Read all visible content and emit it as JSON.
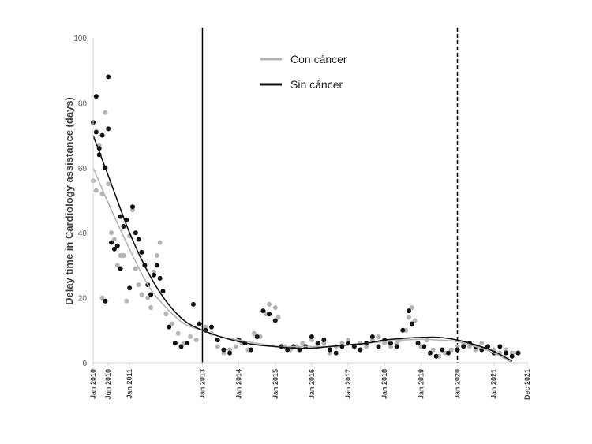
{
  "chart_data": {
    "type": "scatter",
    "ylabel": "Delay time in Cardiology assistance (days)",
    "ylim": [
      0,
      100
    ],
    "yticks": [
      "0",
      "20",
      "40",
      "60",
      "80",
      "100"
    ],
    "xlim": [
      "2010-01",
      "2021-12"
    ],
    "xticks": [
      {
        "date": "2010-01",
        "label": "Jan 2010"
      },
      {
        "date": "2010-06",
        "label": "Jun 2010"
      },
      {
        "date": "2011-01",
        "label": "Jan 2011"
      },
      {
        "date": "2013-01",
        "label": "Jan 2013"
      },
      {
        "date": "2014-01",
        "label": "Jan 2014"
      },
      {
        "date": "2015-01",
        "label": "Jan 2015"
      },
      {
        "date": "2016-01",
        "label": "Jan 2016"
      },
      {
        "date": "2017-01",
        "label": "Jan 2017"
      },
      {
        "date": "2018-01",
        "label": "Jan 2018"
      },
      {
        "date": "2019-01",
        "label": "Jan 2019"
      },
      {
        "date": "2020-01",
        "label": "Jan 2020"
      },
      {
        "date": "2021-01",
        "label": "Jan 2021"
      },
      {
        "date": "2021-12",
        "label": "Dec 2021"
      }
    ],
    "vlines": [
      {
        "date": "2013-01",
        "style": "solid"
      },
      {
        "date": "2020-01",
        "style": "dashed"
      }
    ],
    "legend_position": "top-center",
    "grid": false,
    "series": [
      {
        "name": "Con cáncer",
        "color": "#b4b4b4",
        "points": [
          [
            "2010-01",
            56
          ],
          [
            "2010-02",
            53
          ],
          [
            "2010-02",
            71
          ],
          [
            "2010-03",
            67
          ],
          [
            "2010-04",
            52
          ],
          [
            "2010-04",
            20
          ],
          [
            "2010-05",
            77
          ],
          [
            "2010-06",
            55
          ],
          [
            "2010-07",
            40
          ],
          [
            "2010-08",
            38
          ],
          [
            "2010-09",
            30
          ],
          [
            "2010-10",
            33
          ],
          [
            "2010-11",
            33
          ],
          [
            "2010-12",
            19
          ],
          [
            "2011-01",
            39
          ],
          [
            "2011-02",
            47
          ],
          [
            "2011-03",
            29
          ],
          [
            "2011-04",
            24
          ],
          [
            "2011-05",
            21
          ],
          [
            "2011-06",
            30
          ],
          [
            "2011-07",
            20
          ],
          [
            "2011-08",
            17
          ],
          [
            "2011-09",
            28
          ],
          [
            "2011-10",
            33
          ],
          [
            "2011-11",
            37
          ],
          [
            "2011-12",
            22
          ],
          [
            "2012-01",
            15
          ],
          [
            "2012-03",
            12
          ],
          [
            "2012-05",
            9
          ],
          [
            "2012-07",
            6
          ],
          [
            "2012-09",
            8
          ],
          [
            "2012-11",
            7
          ],
          [
            "2013-02",
            11
          ],
          [
            "2013-04",
            9
          ],
          [
            "2013-06",
            5
          ],
          [
            "2013-08",
            3
          ],
          [
            "2013-10",
            4
          ],
          [
            "2013-12",
            5
          ],
          [
            "2014-02",
            6
          ],
          [
            "2014-04",
            4
          ],
          [
            "2014-06",
            9
          ],
          [
            "2014-08",
            8
          ],
          [
            "2014-10",
            15
          ],
          [
            "2014-11",
            18
          ],
          [
            "2015-01",
            17
          ],
          [
            "2015-02",
            14
          ],
          [
            "2015-04",
            5
          ],
          [
            "2015-06",
            4
          ],
          [
            "2015-08",
            5
          ],
          [
            "2015-10",
            6
          ],
          [
            "2016-01",
            7
          ],
          [
            "2016-03",
            5
          ],
          [
            "2016-05",
            6
          ],
          [
            "2016-07",
            3
          ],
          [
            "2016-09",
            5
          ],
          [
            "2016-11",
            6
          ],
          [
            "2017-01",
            7
          ],
          [
            "2017-03",
            5
          ],
          [
            "2017-05",
            6
          ],
          [
            "2017-07",
            5
          ],
          [
            "2017-09",
            7
          ],
          [
            "2017-11",
            8
          ],
          [
            "2018-01",
            6
          ],
          [
            "2018-03",
            5
          ],
          [
            "2018-05",
            6
          ],
          [
            "2018-06",
            7
          ],
          [
            "2018-08",
            10
          ],
          [
            "2018-09",
            14
          ],
          [
            "2018-10",
            17
          ],
          [
            "2018-11",
            13
          ],
          [
            "2019-01",
            5
          ],
          [
            "2019-03",
            7
          ],
          [
            "2019-05",
            4
          ],
          [
            "2019-07",
            2
          ],
          [
            "2019-09",
            3
          ],
          [
            "2019-11",
            4
          ],
          [
            "2020-01",
            5
          ],
          [
            "2020-03",
            6
          ],
          [
            "2020-05",
            5
          ],
          [
            "2020-07",
            4
          ],
          [
            "2020-09",
            6
          ],
          [
            "2020-11",
            5
          ],
          [
            "2021-01",
            4
          ],
          [
            "2021-03",
            3
          ],
          [
            "2021-05",
            4
          ],
          [
            "2021-07",
            3
          ],
          [
            "2021-09",
            3
          ]
        ]
      },
      {
        "name": "Sin cáncer",
        "color": "#111111",
        "points": [
          [
            "2010-01",
            74
          ],
          [
            "2010-02",
            82
          ],
          [
            "2010-02",
            71
          ],
          [
            "2010-03",
            64
          ],
          [
            "2010-03",
            66
          ],
          [
            "2010-04",
            70
          ],
          [
            "2010-05",
            60
          ],
          [
            "2010-05",
            19
          ],
          [
            "2010-06",
            88
          ],
          [
            "2010-06",
            72
          ],
          [
            "2010-07",
            37
          ],
          [
            "2010-08",
            35
          ],
          [
            "2010-09",
            36
          ],
          [
            "2010-10",
            29
          ],
          [
            "2010-10",
            45
          ],
          [
            "2010-11",
            42
          ],
          [
            "2010-12",
            44
          ],
          [
            "2011-01",
            23
          ],
          [
            "2011-02",
            48
          ],
          [
            "2011-03",
            40
          ],
          [
            "2011-04",
            38
          ],
          [
            "2011-05",
            34
          ],
          [
            "2011-06",
            30
          ],
          [
            "2011-07",
            24
          ],
          [
            "2011-08",
            21
          ],
          [
            "2011-09",
            27
          ],
          [
            "2011-10",
            30
          ],
          [
            "2011-11",
            26
          ],
          [
            "2011-12",
            22
          ],
          [
            "2012-02",
            11
          ],
          [
            "2012-04",
            6
          ],
          [
            "2012-06",
            5
          ],
          [
            "2012-08",
            6
          ],
          [
            "2012-10",
            18
          ],
          [
            "2012-12",
            12
          ],
          [
            "2013-02",
            10
          ],
          [
            "2013-04",
            11
          ],
          [
            "2013-06",
            7
          ],
          [
            "2013-08",
            4
          ],
          [
            "2013-10",
            3
          ],
          [
            "2014-01",
            7
          ],
          [
            "2014-03",
            6
          ],
          [
            "2014-05",
            4
          ],
          [
            "2014-07",
            8
          ],
          [
            "2014-09",
            16
          ],
          [
            "2014-11",
            15
          ],
          [
            "2015-01",
            13
          ],
          [
            "2015-03",
            5
          ],
          [
            "2015-05",
            4
          ],
          [
            "2015-07",
            5
          ],
          [
            "2015-09",
            4
          ],
          [
            "2015-11",
            5
          ],
          [
            "2016-01",
            8
          ],
          [
            "2016-03",
            6
          ],
          [
            "2016-05",
            7
          ],
          [
            "2016-07",
            4
          ],
          [
            "2016-09",
            3
          ],
          [
            "2016-11",
            5
          ],
          [
            "2017-01",
            6
          ],
          [
            "2017-03",
            5
          ],
          [
            "2017-05",
            4
          ],
          [
            "2017-07",
            6
          ],
          [
            "2017-09",
            8
          ],
          [
            "2017-11",
            5
          ],
          [
            "2018-01",
            7
          ],
          [
            "2018-03",
            6
          ],
          [
            "2018-05",
            5
          ],
          [
            "2018-07",
            10
          ],
          [
            "2018-09",
            16
          ],
          [
            "2018-10",
            12
          ],
          [
            "2018-12",
            6
          ],
          [
            "2019-02",
            5
          ],
          [
            "2019-04",
            3
          ],
          [
            "2019-06",
            2
          ],
          [
            "2019-08",
            4
          ],
          [
            "2019-10",
            3
          ],
          [
            "2020-01",
            4
          ],
          [
            "2020-03",
            5
          ],
          [
            "2020-05",
            6
          ],
          [
            "2020-07",
            5
          ],
          [
            "2020-09",
            4
          ],
          [
            "2020-11",
            5
          ],
          [
            "2021-01",
            3
          ],
          [
            "2021-03",
            5
          ],
          [
            "2021-05",
            3
          ],
          [
            "2021-07",
            2
          ],
          [
            "2021-09",
            3
          ]
        ]
      }
    ],
    "trendlines": [
      {
        "series": "Con cáncer",
        "color": "#b4b4b4",
        "points": [
          [
            "2010-01",
            60
          ],
          [
            "2010-07",
            47
          ],
          [
            "2011-01",
            35
          ],
          [
            "2011-07",
            24
          ],
          [
            "2012-01",
            17
          ],
          [
            "2012-07",
            12
          ],
          [
            "2013-01",
            10
          ],
          [
            "2013-07",
            8
          ],
          [
            "2014-01",
            7
          ],
          [
            "2014-07",
            6
          ],
          [
            "2015-01",
            5
          ],
          [
            "2015-07",
            5
          ],
          [
            "2016-01",
            5
          ],
          [
            "2016-07",
            5
          ],
          [
            "2017-01",
            5.5
          ],
          [
            "2017-07",
            6
          ],
          [
            "2018-01",
            6.5
          ],
          [
            "2018-07",
            7
          ],
          [
            "2019-01",
            7.2
          ],
          [
            "2019-07",
            7
          ],
          [
            "2020-01",
            6.5
          ],
          [
            "2020-07",
            5
          ],
          [
            "2021-01",
            3
          ],
          [
            "2021-07",
            0
          ]
        ]
      },
      {
        "series": "Sin cáncer",
        "color": "#111111",
        "points": [
          [
            "2010-01",
            70
          ],
          [
            "2010-07",
            55
          ],
          [
            "2011-01",
            40
          ],
          [
            "2011-07",
            28
          ],
          [
            "2012-01",
            19
          ],
          [
            "2012-07",
            13
          ],
          [
            "2013-01",
            10
          ],
          [
            "2013-07",
            8
          ],
          [
            "2014-01",
            6.5
          ],
          [
            "2014-07",
            5.5
          ],
          [
            "2015-01",
            5
          ],
          [
            "2015-07",
            4.5
          ],
          [
            "2016-01",
            4.5
          ],
          [
            "2016-07",
            5
          ],
          [
            "2017-01",
            5.5
          ],
          [
            "2017-07",
            6
          ],
          [
            "2018-01",
            7
          ],
          [
            "2018-07",
            7.5
          ],
          [
            "2019-01",
            7.8
          ],
          [
            "2019-07",
            7.8
          ],
          [
            "2020-01",
            7
          ],
          [
            "2020-07",
            5.5
          ],
          [
            "2021-01",
            3.5
          ],
          [
            "2021-07",
            0.5
          ]
        ]
      }
    ]
  }
}
